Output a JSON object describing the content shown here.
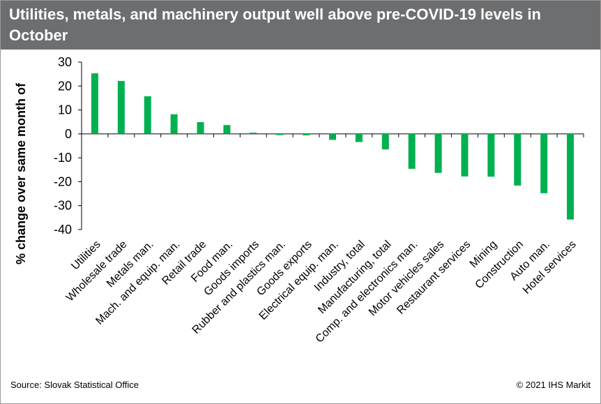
{
  "header": {
    "title": "Utilities, metals, and machinery output well above pre-COVID-19 levels in October"
  },
  "footer": {
    "source": "Source: Slovak Statistical Office",
    "copyright": "© 2021 IHS Markit"
  },
  "colors": {
    "header_bg": "#6d6e70",
    "bar": "#00b050"
  },
  "chart_data": {
    "type": "bar",
    "title": "Utilities, metals, and machinery output well above pre-COVID-19 levels in October",
    "xlabel": "",
    "ylabel": "% change over same month of",
    "ylim": [
      -40,
      30
    ],
    "yticks": [
      30,
      20,
      10,
      0,
      -10,
      -20,
      -30,
      -40
    ],
    "grid": false,
    "categories": [
      "Utilities",
      "Wholesale trade",
      "Metals man.",
      "Mach. and equip. man.",
      "Retail trade",
      "Food man.",
      "Goods imports",
      "Rubber and plastics man.",
      "Goods exports",
      "Electrical equip. man.",
      "Industry, total",
      "Manufacturing, total",
      "Comp. and electronics man.",
      "Motor vehicles sales",
      "Restaurant services",
      "Mining",
      "Construction",
      "Auto man.",
      "Hotel services"
    ],
    "values": [
      25.3,
      22.1,
      15.7,
      8.2,
      4.9,
      3.7,
      0.5,
      -0.5,
      -0.6,
      -2.5,
      -3.4,
      -6.5,
      -14.6,
      -16.3,
      -17.8,
      -17.9,
      -21.6,
      -24.8,
      -35.8
    ]
  }
}
